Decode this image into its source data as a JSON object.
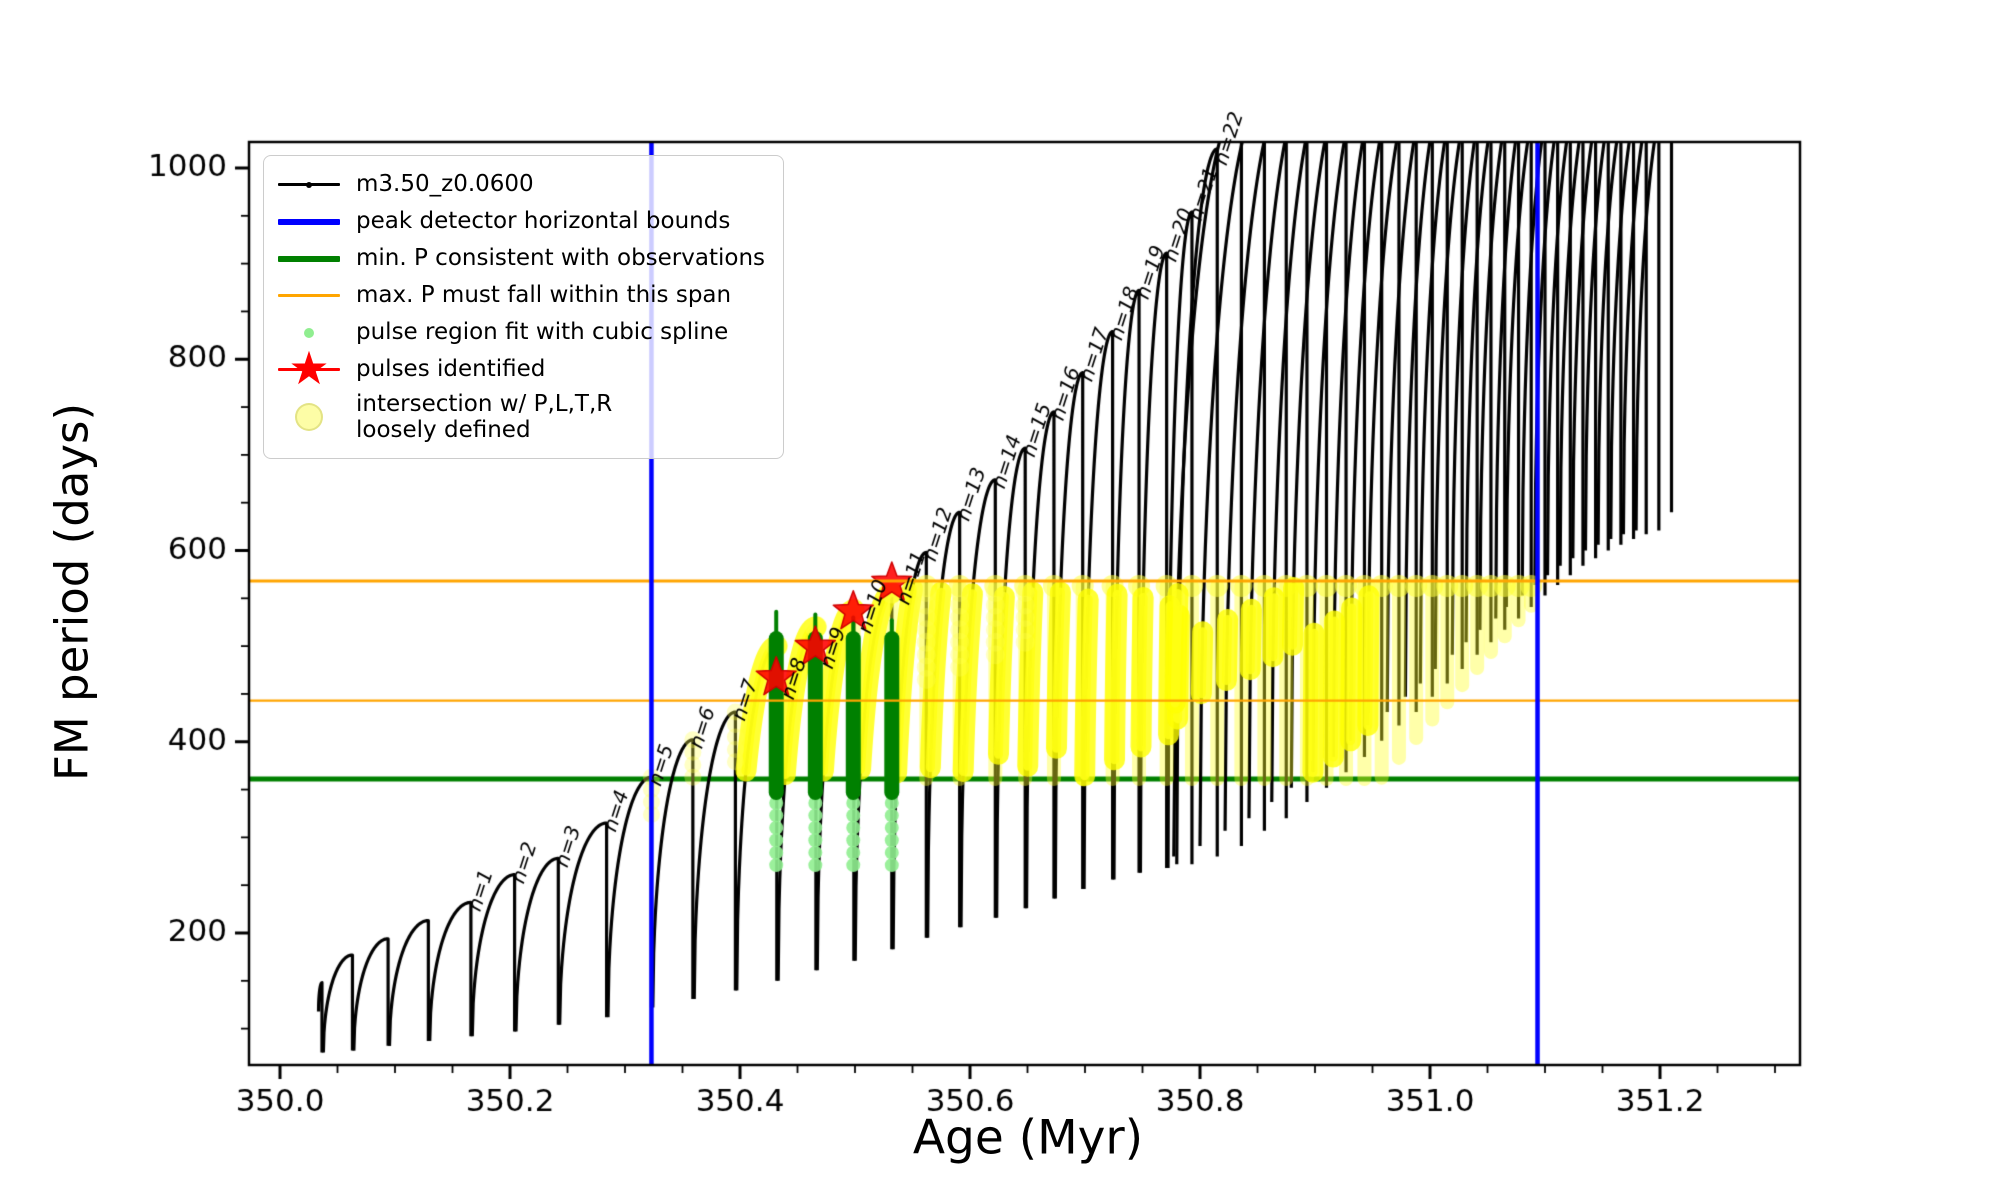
{
  "figure": {
    "background": "#ffffff"
  },
  "colors": {
    "series": "#000000",
    "bounds_blue": "#0000ff",
    "minP_green": "#008000",
    "maxP_orange": "#ffa500",
    "spline_lightgreen": "#90ee90",
    "pulse_red": "#ff0000",
    "intersection_yellow": "#ffff00"
  },
  "legend": {
    "entries": [
      {
        "kind": "line-dot",
        "color": "#000000",
        "label": "m3.50_z0.0600"
      },
      {
        "kind": "line",
        "color": "#0000ff",
        "label": "peak detector horizontal bounds"
      },
      {
        "kind": "line",
        "color": "#008000",
        "label": "min. P consistent with observations"
      },
      {
        "kind": "line",
        "color": "#ffa500",
        "label": "max. P must fall within this span"
      },
      {
        "kind": "dot",
        "color": "#90ee90",
        "label": "pulse region fit with cubic spline"
      },
      {
        "kind": "star-line",
        "color": "#ff0000",
        "label": "pulses identified"
      },
      {
        "kind": "big-dot",
        "color": "#fdfd96",
        "label": "intersection w/ P,L,T,R",
        "label2": "loosely defined"
      }
    ]
  },
  "chart_data": {
    "type": "line",
    "title": "",
    "series_label": "m3.50_z0.0600",
    "xlabel": "Age (Myr)",
    "ylabel": "FM period (days)",
    "xlim": [
      349.973,
      351.322
    ],
    "ylim": [
      62,
      1027
    ],
    "x_ticks": [
      350.0,
      350.2,
      350.4,
      350.6,
      350.8,
      351.0,
      351.2
    ],
    "x_tick_labels": [
      "350.0",
      "350.2",
      "350.4",
      "350.6",
      "350.8",
      "351.0",
      "351.2"
    ],
    "x_minor_step": 0.05,
    "y_ticks": [
      200,
      400,
      600,
      800,
      1000
    ],
    "y_tick_labels": [
      "200",
      "400",
      "600",
      "800",
      "1000"
    ],
    "y_minor_step": 50,
    "grid": false,
    "legend_position": "upper left",
    "vlines": {
      "x": [
        350.323,
        351.0935
      ],
      "label": "peak detector horizontal bounds"
    },
    "hlines": {
      "min_P": 361,
      "max_P_span": [
        443,
        568
      ]
    },
    "end_min": 640,
    "cycles": [
      {
        "a": 350.0365,
        "p": 148,
        "m": 118,
        "n": ""
      },
      {
        "a": 350.063,
        "p": 177,
        "m": 75,
        "n": ""
      },
      {
        "a": 350.094,
        "p": 194,
        "m": 77,
        "n": ""
      },
      {
        "a": 350.129,
        "p": 213,
        "m": 82,
        "n": ""
      },
      {
        "a": 350.166,
        "p": 232,
        "m": 87,
        "n": "n=1"
      },
      {
        "a": 350.204,
        "p": 261,
        "m": 92,
        "n": "n=2"
      },
      {
        "a": 350.242,
        "p": 278,
        "m": 97,
        "n": "n=3"
      },
      {
        "a": 350.284,
        "p": 315,
        "m": 104,
        "n": "n=4"
      },
      {
        "a": 350.323,
        "p": 363,
        "m": 112,
        "n": "n=5"
      },
      {
        "a": 350.359,
        "p": 402,
        "m": 122,
        "n": "n=6"
      },
      {
        "a": 350.396,
        "p": 431,
        "m": 131,
        "n": "n=7"
      },
      {
        "a": 350.432,
        "p": 500,
        "m": 140,
        "n": ""
      },
      {
        "a": 350.466,
        "p": 520,
        "m": 150,
        "n": ""
      },
      {
        "a": 350.499,
        "p": 538,
        "m": 161,
        "n": ""
      },
      {
        "a": 350.532,
        "p": 556,
        "m": 171,
        "n": ""
      },
      {
        "a": 350.562,
        "p": 598,
        "m": 183,
        "n": "n=12"
      },
      {
        "a": 350.591,
        "p": 640,
        "m": 195,
        "n": "n=13"
      },
      {
        "a": 350.622,
        "p": 674,
        "m": 206,
        "n": "n=14"
      },
      {
        "a": 350.648,
        "p": 707,
        "m": 216,
        "n": "n=15"
      },
      {
        "a": 350.673,
        "p": 745,
        "m": 226,
        "n": "n=16"
      },
      {
        "a": 350.698,
        "p": 786,
        "m": 236,
        "n": "n=17"
      },
      {
        "a": 350.724,
        "p": 829,
        "m": 246,
        "n": "n=18"
      },
      {
        "a": 350.747,
        "p": 872,
        "m": 256,
        "n": "n=19"
      },
      {
        "a": 350.771,
        "p": 911,
        "m": 263,
        "n": "n=20"
      },
      {
        "a": 350.793,
        "p": 954,
        "m": 268,
        "n": "n=21"
      },
      {
        "a": 350.815,
        "p": 1020,
        "m": 272,
        "n": "n=22"
      },
      {
        "a": 350.836,
        "p": 1070,
        "m": 280,
        "n": ""
      },
      {
        "a": 350.856,
        "p": 1075,
        "m": 291,
        "n": ""
      },
      {
        "a": 350.875,
        "p": 1080,
        "m": 307,
        "n": ""
      },
      {
        "a": 350.893,
        "p": 1085,
        "m": 320,
        "n": ""
      },
      {
        "a": 350.91,
        "p": 1085,
        "m": 337,
        "n": ""
      },
      {
        "a": 350.927,
        "p": 1085,
        "m": 352,
        "n": ""
      },
      {
        "a": 350.943,
        "p": 1085,
        "m": 368,
        "n": ""
      },
      {
        "a": 350.958,
        "p": 1085,
        "m": 384,
        "n": ""
      },
      {
        "a": 350.973,
        "p": 1085,
        "m": 401,
        "n": ""
      },
      {
        "a": 350.988,
        "p": 1085,
        "m": 417,
        "n": ""
      },
      {
        "a": 351.002,
        "p": 1085,
        "m": 431,
        "n": ""
      },
      {
        "a": 351.015,
        "p": 1085,
        "m": 447,
        "n": ""
      },
      {
        "a": 351.028,
        "p": 1085,
        "m": 461,
        "n": ""
      },
      {
        "a": 351.041,
        "p": 1085,
        "m": 476,
        "n": ""
      },
      {
        "a": 351.053,
        "p": 1085,
        "m": 491,
        "n": ""
      },
      {
        "a": 351.065,
        "p": 1085,
        "m": 504,
        "n": ""
      },
      {
        "a": 351.077,
        "p": 1085,
        "m": 517,
        "n": ""
      },
      {
        "a": 351.088,
        "p": 1085,
        "m": 529,
        "n": ""
      },
      {
        "a": 351.1,
        "p": 1085,
        "m": 541,
        "n": ""
      },
      {
        "a": 351.111,
        "p": 1085,
        "m": 553,
        "n": ""
      },
      {
        "a": 351.122,
        "p": 1085,
        "m": 564,
        "n": ""
      },
      {
        "a": 351.133,
        "p": 1085,
        "m": 574,
        "n": ""
      },
      {
        "a": 351.144,
        "p": 1085,
        "m": 584,
        "n": ""
      },
      {
        "a": 351.155,
        "p": 1085,
        "m": 592,
        "n": ""
      },
      {
        "a": 351.166,
        "p": 1085,
        "m": 600,
        "n": ""
      },
      {
        "a": 351.177,
        "p": 1085,
        "m": 606,
        "n": ""
      },
      {
        "a": 351.188,
        "p": 1085,
        "m": 612,
        "n": ""
      },
      {
        "a": 351.199,
        "p": 1085,
        "m": 617,
        "n": ""
      },
      {
        "a": 351.21,
        "p": 1085,
        "m": 621,
        "n": ""
      }
    ],
    "stars": [
      {
        "x": 350.4315,
        "y": 467,
        "n": "n=8"
      },
      {
        "x": 350.4655,
        "y": 499,
        "n": "n=9"
      },
      {
        "x": 350.4985,
        "y": 536,
        "n": "n=10"
      },
      {
        "x": 350.532,
        "y": 566,
        "n": "n=11"
      }
    ],
    "pulse_bars": {
      "x": [
        350.4315,
        350.4655,
        350.4985,
        350.532
      ],
      "bar_top": 508,
      "bar_bottom": 347,
      "thin_tops": [
        536,
        533,
        530,
        527
      ],
      "thin_bottom": 490,
      "tail_top": 349,
      "tail_bottom": 271
    },
    "yellow": {
      "band_min": 361,
      "band_max": 562,
      "solid_range": [
        350.41,
        351.099
      ],
      "lower_break": 350.957,
      "lower_end_age": 351.098,
      "lower_end_P": 556,
      "peak_columns": [
        {
          "x": 350.323,
          "top": 363,
          "bottom": 322
        },
        {
          "x": 350.359,
          "top": 402,
          "bottom": 352
        },
        {
          "x": 350.396,
          "top": 431,
          "bottom": 378
        }
      ],
      "drop_columns": [
        {
          "x": 350.562,
          "top": 556,
          "bottom": 462
        },
        {
          "x": 350.591,
          "top": 556,
          "bottom": 472
        },
        {
          "x": 350.622,
          "top": 556,
          "bottom": 482
        },
        {
          "x": 350.648,
          "top": 556,
          "bottom": 492
        }
      ]
    }
  }
}
